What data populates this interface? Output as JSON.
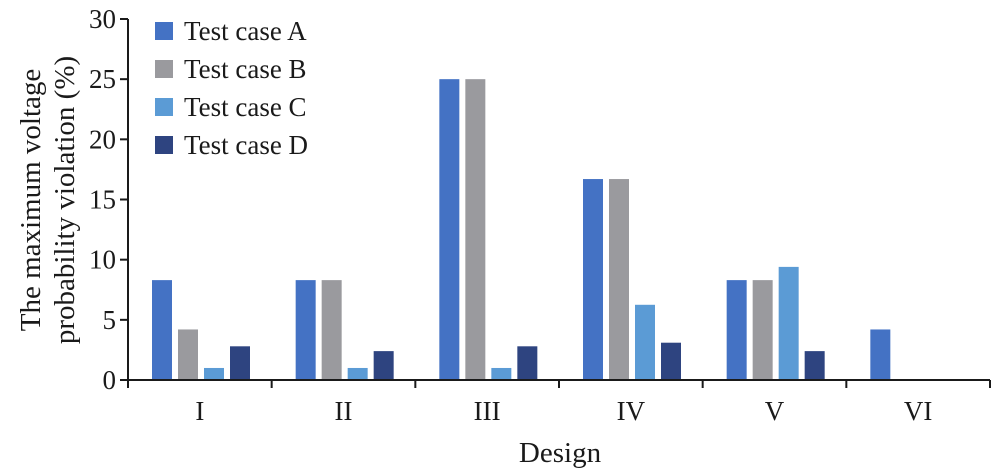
{
  "chart_data": {
    "type": "bar",
    "title": "",
    "xlabel": "Design",
    "ylabel_lines": [
      "The maximum voltage",
      "probability violation (%)"
    ],
    "categories": [
      "I",
      "II",
      "III",
      "IV",
      "V",
      "VI"
    ],
    "ylim": [
      0,
      30
    ],
    "yticks": [
      0,
      5,
      10,
      15,
      20,
      25,
      30
    ],
    "grid": false,
    "legend_position": "top-left",
    "series": [
      {
        "name": "Test case A",
        "color": "#4472c4",
        "values": [
          8.3,
          8.3,
          25.0,
          16.7,
          8.3,
          4.2
        ]
      },
      {
        "name": "Test case B",
        "color": "#9a9a9e",
        "values": [
          4.2,
          8.3,
          25.0,
          16.7,
          8.3,
          0
        ]
      },
      {
        "name": "Test case C",
        "color": "#5b9bd5",
        "values": [
          1.0,
          1.0,
          1.0,
          6.25,
          9.4,
          0
        ]
      },
      {
        "name": "Test case D",
        "color": "#2e4480",
        "values": [
          2.8,
          2.4,
          2.8,
          3.1,
          2.4,
          0
        ]
      }
    ]
  }
}
